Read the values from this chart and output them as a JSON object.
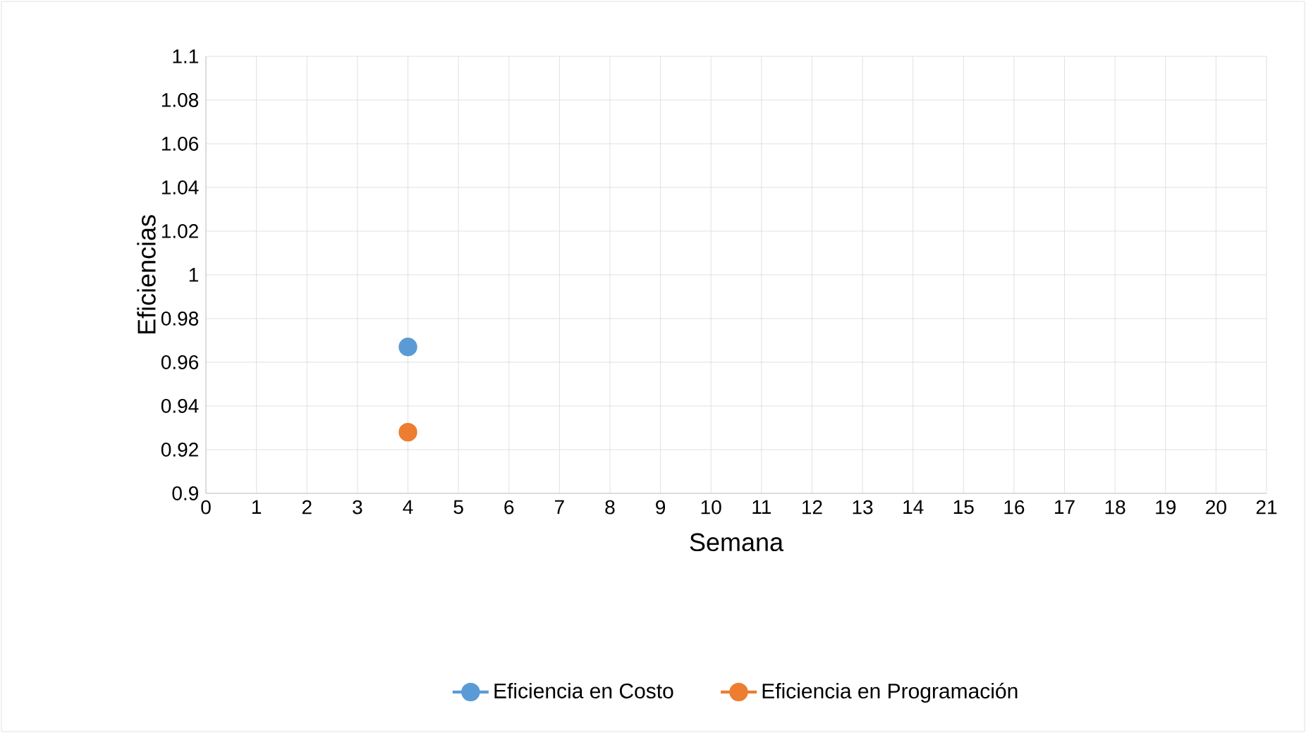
{
  "chart_data": {
    "type": "line",
    "xlabel": "Semana",
    "ylabel": "Eficiencias",
    "x": [
      4
    ],
    "series": [
      {
        "name": "Eficiencia en Costo",
        "color": "#5b9bd5",
        "values": [
          0.967
        ]
      },
      {
        "name": "Eficiencia en Programación",
        "color": "#ed7d31",
        "values": [
          0.928
        ]
      }
    ],
    "xlim": [
      0,
      21
    ],
    "xticks": [
      0,
      1,
      2,
      3,
      4,
      5,
      6,
      7,
      8,
      9,
      10,
      11,
      12,
      13,
      14,
      15,
      16,
      17,
      18,
      19,
      20,
      21
    ],
    "ylim": [
      0.9,
      1.1
    ],
    "yticks": [
      0.9,
      0.92,
      0.94,
      0.96,
      0.98,
      1,
      1.02,
      1.04,
      1.06,
      1.08,
      1.1
    ],
    "grid": true,
    "legend": "bottom",
    "marker": "circle",
    "line_style": "solid"
  }
}
